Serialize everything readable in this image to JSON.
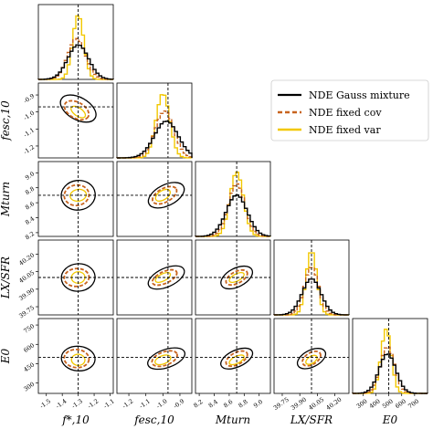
{
  "chart_data": {
    "type": "corner",
    "parameters": [
      {
        "label": "f_{*,10}",
        "label_display": "f*,10",
        "range": [
          -1.55,
          -1.08
        ],
        "truth": -1.3,
        "ticks": [
          -1.5,
          -1.4,
          -1.3,
          -1.2,
          -1.1
        ]
      },
      {
        "label": "f_{esc,10}",
        "label_display": "fesc,10",
        "range": [
          -1.27,
          -0.83
        ],
        "truth": -0.97,
        "ticks": [
          -1.2,
          -1.1,
          -1.0,
          -0.9
        ]
      },
      {
        "label": "M_turn",
        "label_display": "Mturn",
        "range": [
          8.15,
          9.15
        ],
        "truth": 8.7,
        "ticks": [
          8.2,
          8.4,
          8.6,
          8.8,
          9.0
        ]
      },
      {
        "label": "L_X/SFR",
        "label_display": "LX/SFR",
        "range": [
          39.68,
          40.32
        ],
        "truth": 40.0,
        "ticks": [
          39.75,
          39.9,
          40.05,
          40.2
        ]
      },
      {
        "label": "E_0",
        "label_display": "E0",
        "range": [
          220,
          800
        ],
        "truth": 500,
        "ticks": [
          300,
          400,
          500,
          600,
          700
        ]
      }
    ],
    "y_tick_labels": {
      "f_esc,10": [
        "-0.9",
        "-1.0",
        "-1.1",
        "-1.2"
      ],
      "M_turn": [
        "9.0",
        "8.8",
        "8.6",
        "8.4",
        "8.2"
      ],
      "L_X/SFR": [
        "40.20",
        "40.05",
        "39.90",
        "39.75"
      ],
      "E_0": [
        "750",
        "600",
        "450",
        "300"
      ]
    },
    "x_tick_labels": {
      "f_*,10": [
        "-1.5",
        "-1.4",
        "-1.3",
        "-1.2",
        "-1.1"
      ],
      "f_esc,10": [
        "-1.2",
        "-1.1",
        "-1.0",
        "-0.9"
      ],
      "M_turn": [
        "8.2",
        "8.4",
        "8.6",
        "8.8",
        "9.0"
      ],
      "L_X/SFR": [
        "39.75",
        "39.90",
        "40.05",
        "40.20"
      ],
      "E_0": [
        "300",
        "400",
        "500",
        "600",
        "700"
      ]
    },
    "series": [
      {
        "name": "NDE Gauss mixture",
        "color": "#000000",
        "style": "solid",
        "marginal_sigma": [
          0.065,
          0.07,
          0.14,
          0.08,
          65
        ],
        "marginal_mean": [
          -1.3,
          -0.98,
          8.7,
          40.0,
          490
        ],
        "contour_scale": 1.55,
        "correlation": 0.65
      },
      {
        "name": "NDE fixed cov",
        "color": "#c8641e",
        "style": "dashed",
        "marginal_sigma": [
          0.055,
          0.055,
          0.11,
          0.06,
          55
        ],
        "marginal_mean": [
          -1.31,
          -0.99,
          8.7,
          40.0,
          490
        ],
        "contour_scale": 1.35,
        "correlation": 0.7
      },
      {
        "name": "NDE fixed var",
        "color": "#f2c800",
        "style": "solid",
        "marginal_sigma": [
          0.035,
          0.04,
          0.09,
          0.045,
          40
        ],
        "marginal_mean": [
          -1.3,
          -1.0,
          8.7,
          40.0,
          480
        ],
        "contour_scale": 1.15,
        "correlation": 0.75
      }
    ],
    "legend": {
      "position": "upper right",
      "entries": [
        "NDE Gauss mixture",
        "NDE fixed cov",
        "NDE fixed var"
      ]
    },
    "truth_lines": "dashed black"
  }
}
